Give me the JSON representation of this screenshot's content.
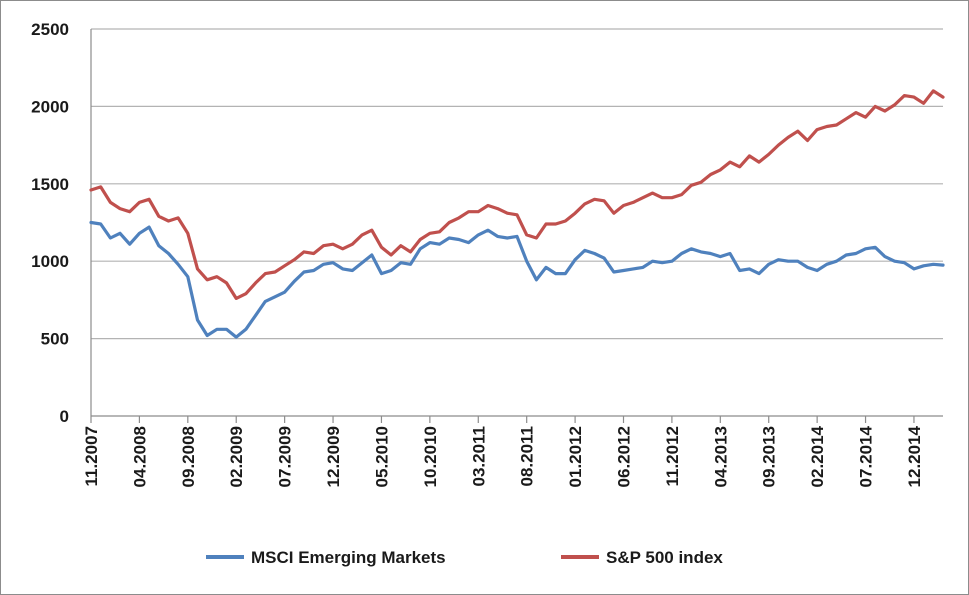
{
  "chart_data": {
    "type": "line",
    "title": "",
    "xlabel": "",
    "ylabel": "",
    "ylim": [
      0,
      2500
    ],
    "yticks": [
      0,
      500,
      1000,
      1500,
      2000,
      2500
    ],
    "grid": "horizontal",
    "legend_position": "bottom",
    "xticks": [
      "11.2007",
      "04.2008",
      "09.2008",
      "02.2009",
      "07.2009",
      "12.2009",
      "05.2010",
      "10.2010",
      "03.2011",
      "08.2011",
      "01.2012",
      "06.2012",
      "11.2012",
      "04.2013",
      "09.2013",
      "02.2014",
      "07.2014",
      "12.2014"
    ],
    "x_start": "11.2007",
    "x_end": "03.2015",
    "series": [
      {
        "name": "MSCI Emerging Markets",
        "color": "#4f81bd",
        "points": [
          [
            "11.2007",
            1250
          ],
          [
            "12.2007",
            1240
          ],
          [
            "01.2008",
            1150
          ],
          [
            "02.2008",
            1180
          ],
          [
            "03.2008",
            1110
          ],
          [
            "04.2008",
            1180
          ],
          [
            "05.2008",
            1220
          ],
          [
            "06.2008",
            1100
          ],
          [
            "07.2008",
            1050
          ],
          [
            "08.2008",
            980
          ],
          [
            "09.2008",
            900
          ],
          [
            "10.2008",
            620
          ],
          [
            "11.2008",
            520
          ],
          [
            "12.2008",
            560
          ],
          [
            "01.2009",
            560
          ],
          [
            "02.2009",
            510
          ],
          [
            "03.2009",
            560
          ],
          [
            "04.2009",
            650
          ],
          [
            "05.2009",
            740
          ],
          [
            "06.2009",
            770
          ],
          [
            "07.2009",
            800
          ],
          [
            "08.2009",
            870
          ],
          [
            "09.2009",
            930
          ],
          [
            "10.2009",
            940
          ],
          [
            "11.2009",
            980
          ],
          [
            "12.2009",
            990
          ],
          [
            "01.2010",
            950
          ],
          [
            "02.2010",
            940
          ],
          [
            "03.2010",
            990
          ],
          [
            "04.2010",
            1040
          ],
          [
            "05.2010",
            920
          ],
          [
            "06.2010",
            940
          ],
          [
            "07.2010",
            990
          ],
          [
            "08.2010",
            980
          ],
          [
            "09.2010",
            1080
          ],
          [
            "10.2010",
            1120
          ],
          [
            "11.2010",
            1110
          ],
          [
            "12.2010",
            1150
          ],
          [
            "01.2011",
            1140
          ],
          [
            "02.2011",
            1120
          ],
          [
            "03.2011",
            1170
          ],
          [
            "04.2011",
            1200
          ],
          [
            "05.2011",
            1160
          ],
          [
            "06.2011",
            1150
          ],
          [
            "07.2011",
            1160
          ],
          [
            "08.2011",
            1000
          ],
          [
            "09.2011",
            880
          ],
          [
            "10.2011",
            960
          ],
          [
            "11.2011",
            920
          ],
          [
            "12.2011",
            920
          ],
          [
            "01.2012",
            1010
          ],
          [
            "02.2012",
            1070
          ],
          [
            "03.2012",
            1050
          ],
          [
            "04.2012",
            1020
          ],
          [
            "05.2012",
            930
          ],
          [
            "06.2012",
            940
          ],
          [
            "07.2012",
            950
          ],
          [
            "08.2012",
            960
          ],
          [
            "09.2012",
            1000
          ],
          [
            "10.2012",
            990
          ],
          [
            "11.2012",
            1000
          ],
          [
            "12.2012",
            1050
          ],
          [
            "01.2013",
            1080
          ],
          [
            "02.2013",
            1060
          ],
          [
            "03.2013",
            1050
          ],
          [
            "04.2013",
            1030
          ],
          [
            "05.2013",
            1050
          ],
          [
            "06.2013",
            940
          ],
          [
            "07.2013",
            950
          ],
          [
            "08.2013",
            920
          ],
          [
            "09.2013",
            980
          ],
          [
            "10.2013",
            1010
          ],
          [
            "11.2013",
            1000
          ],
          [
            "12.2013",
            1000
          ],
          [
            "01.2014",
            960
          ],
          [
            "02.2014",
            940
          ],
          [
            "03.2014",
            980
          ],
          [
            "04.2014",
            1000
          ],
          [
            "05.2014",
            1040
          ],
          [
            "06.2014",
            1050
          ],
          [
            "07.2014",
            1080
          ],
          [
            "08.2014",
            1090
          ],
          [
            "09.2014",
            1030
          ],
          [
            "10.2014",
            1000
          ],
          [
            "11.2014",
            990
          ],
          [
            "12.2014",
            950
          ],
          [
            "01.2015",
            970
          ],
          [
            "02.2015",
            980
          ],
          [
            "03.2015",
            975
          ]
        ]
      },
      {
        "name": "S&P 500 index",
        "color": "#c0504d",
        "points": [
          [
            "11.2007",
            1460
          ],
          [
            "12.2007",
            1480
          ],
          [
            "01.2008",
            1380
          ],
          [
            "02.2008",
            1340
          ],
          [
            "03.2008",
            1320
          ],
          [
            "04.2008",
            1380
          ],
          [
            "05.2008",
            1400
          ],
          [
            "06.2008",
            1290
          ],
          [
            "07.2008",
            1260
          ],
          [
            "08.2008",
            1280
          ],
          [
            "09.2008",
            1180
          ],
          [
            "10.2008",
            950
          ],
          [
            "11.2008",
            880
          ],
          [
            "12.2008",
            900
          ],
          [
            "01.2009",
            860
          ],
          [
            "02.2009",
            760
          ],
          [
            "03.2009",
            790
          ],
          [
            "04.2009",
            860
          ],
          [
            "05.2009",
            920
          ],
          [
            "06.2009",
            930
          ],
          [
            "07.2009",
            970
          ],
          [
            "08.2009",
            1010
          ],
          [
            "09.2009",
            1060
          ],
          [
            "10.2009",
            1050
          ],
          [
            "11.2009",
            1100
          ],
          [
            "12.2009",
            1110
          ],
          [
            "01.2010",
            1080
          ],
          [
            "02.2010",
            1110
          ],
          [
            "03.2010",
            1170
          ],
          [
            "04.2010",
            1200
          ],
          [
            "05.2010",
            1090
          ],
          [
            "06.2010",
            1040
          ],
          [
            "07.2010",
            1100
          ],
          [
            "08.2010",
            1060
          ],
          [
            "09.2010",
            1140
          ],
          [
            "10.2010",
            1180
          ],
          [
            "11.2010",
            1190
          ],
          [
            "12.2010",
            1250
          ],
          [
            "01.2011",
            1280
          ],
          [
            "02.2011",
            1320
          ],
          [
            "03.2011",
            1320
          ],
          [
            "04.2011",
            1360
          ],
          [
            "05.2011",
            1340
          ],
          [
            "06.2011",
            1310
          ],
          [
            "07.2011",
            1300
          ],
          [
            "08.2011",
            1170
          ],
          [
            "09.2011",
            1150
          ],
          [
            "10.2011",
            1240
          ],
          [
            "11.2011",
            1240
          ],
          [
            "12.2011",
            1260
          ],
          [
            "01.2012",
            1310
          ],
          [
            "02.2012",
            1370
          ],
          [
            "03.2012",
            1400
          ],
          [
            "04.2012",
            1390
          ],
          [
            "05.2012",
            1310
          ],
          [
            "06.2012",
            1360
          ],
          [
            "07.2012",
            1380
          ],
          [
            "08.2012",
            1410
          ],
          [
            "09.2012",
            1440
          ],
          [
            "10.2012",
            1410
          ],
          [
            "11.2012",
            1410
          ],
          [
            "12.2012",
            1430
          ],
          [
            "01.2013",
            1490
          ],
          [
            "02.2013",
            1510
          ],
          [
            "03.2013",
            1560
          ],
          [
            "04.2013",
            1590
          ],
          [
            "05.2013",
            1640
          ],
          [
            "06.2013",
            1610
          ],
          [
            "07.2013",
            1680
          ],
          [
            "08.2013",
            1640
          ],
          [
            "09.2013",
            1690
          ],
          [
            "10.2013",
            1750
          ],
          [
            "11.2013",
            1800
          ],
          [
            "12.2013",
            1840
          ],
          [
            "01.2014",
            1780
          ],
          [
            "02.2014",
            1850
          ],
          [
            "03.2014",
            1870
          ],
          [
            "04.2014",
            1880
          ],
          [
            "05.2014",
            1920
          ],
          [
            "06.2014",
            1960
          ],
          [
            "07.2014",
            1930
          ],
          [
            "08.2014",
            2000
          ],
          [
            "09.2014",
            1970
          ],
          [
            "10.2014",
            2010
          ],
          [
            "11.2014",
            2070
          ],
          [
            "12.2014",
            2060
          ],
          [
            "01.2015",
            2020
          ],
          [
            "02.2015",
            2100
          ],
          [
            "03.2015",
            2060
          ]
        ]
      }
    ]
  }
}
